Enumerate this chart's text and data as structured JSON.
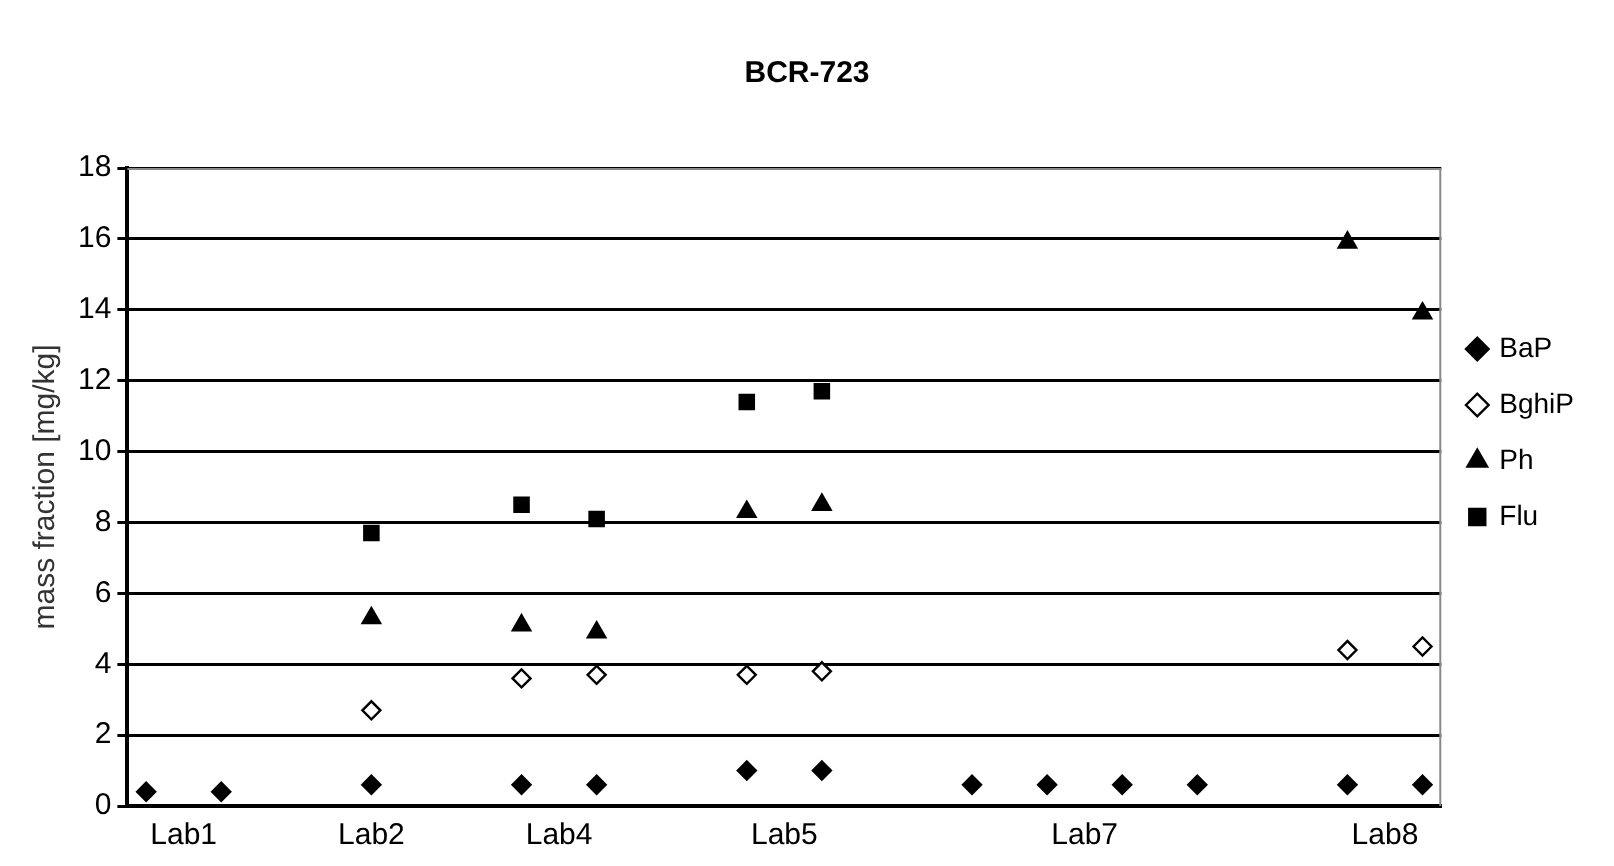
{
  "chart_data": {
    "type": "scatter",
    "title": "BCR-723",
    "ylabel": "mass fraction [mg/kg]",
    "categories": [
      null,
      "Lab1",
      null,
      null,
      null,
      null,
      "Lab2",
      null,
      null,
      null,
      null,
      "Lab4",
      null,
      null,
      null,
      null,
      null,
      "Lab5",
      null,
      null,
      null,
      null,
      null,
      null,
      null,
      "Lab7",
      null,
      null,
      null,
      null,
      null,
      null,
      null,
      "Lab8",
      null
    ],
    "series": [
      {
        "name": "BaP",
        "color": "#000000",
        "marker": "diamond",
        "values": [
          0.4,
          null,
          0.4,
          null,
          null,
          null,
          0.6,
          null,
          null,
          null,
          0.6,
          null,
          0.6,
          null,
          null,
          null,
          1.0,
          null,
          1.0,
          null,
          null,
          null,
          0.6,
          null,
          0.6,
          null,
          0.6,
          null,
          0.6,
          null,
          null,
          null,
          0.6,
          null,
          0.6
        ]
      },
      {
        "name": "BghiP",
        "color": "#ffffff",
        "marker": "diamond",
        "values": [
          null,
          null,
          null,
          null,
          null,
          null,
          2.7,
          null,
          null,
          null,
          3.6,
          null,
          3.7,
          null,
          null,
          null,
          3.7,
          null,
          3.8,
          null,
          null,
          null,
          null,
          null,
          null,
          null,
          null,
          null,
          null,
          null,
          null,
          null,
          4.4,
          null,
          4.5
        ]
      },
      {
        "name": "Ph",
        "color": "#000000",
        "marker": "triangle",
        "values": [
          null,
          null,
          null,
          null,
          null,
          null,
          5.3,
          null,
          null,
          null,
          5.1,
          null,
          4.9,
          null,
          null,
          null,
          8.3,
          null,
          8.5,
          null,
          null,
          null,
          null,
          null,
          null,
          null,
          null,
          null,
          null,
          null,
          null,
          null,
          15.9,
          null,
          13.9
        ]
      },
      {
        "name": "Flu",
        "color": "#000000",
        "marker": "square",
        "values": [
          null,
          null,
          null,
          null,
          null,
          null,
          7.7,
          null,
          null,
          null,
          8.5,
          null,
          8.1,
          null,
          null,
          null,
          11.4,
          null,
          11.7,
          null,
          null,
          null,
          null,
          null,
          null,
          null,
          null,
          null,
          null,
          null,
          null,
          null,
          null,
          null,
          null
        ]
      }
    ],
    "ylim": [
      0,
      18
    ],
    "yticks": [
      0,
      2,
      4,
      6,
      8,
      10,
      12,
      14,
      16,
      18
    ],
    "grid": "y",
    "legend": "right"
  }
}
